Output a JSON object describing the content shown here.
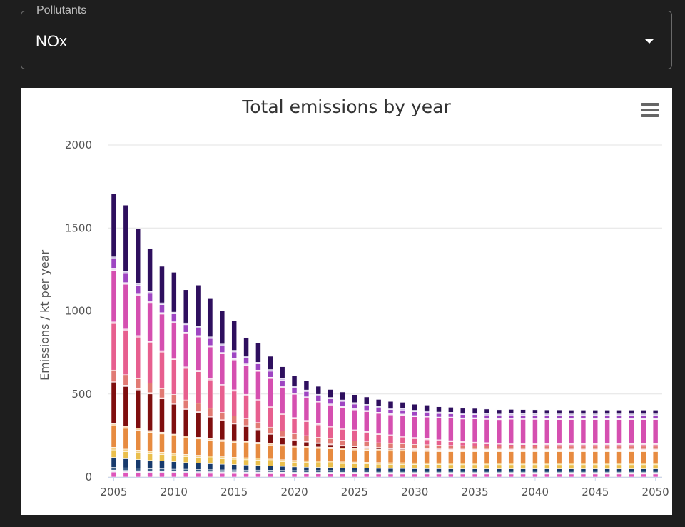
{
  "selector": {
    "label": "Pollutants",
    "value": "NOx"
  },
  "chart_data": {
    "type": "bar",
    "stacked": true,
    "title": "Total emissions by year",
    "xlabel": "",
    "ylabel": "Emissions / kt per year",
    "ylim": [
      0,
      2000
    ],
    "yticks": [
      0,
      500,
      1000,
      1500,
      2000
    ],
    "xticks": [
      2005,
      2010,
      2015,
      2020,
      2025,
      2030,
      2035,
      2040,
      2045,
      2050
    ],
    "grid": true,
    "legend": "none",
    "categories": [
      2005,
      2006,
      2007,
      2008,
      2009,
      2010,
      2011,
      2012,
      2013,
      2014,
      2015,
      2016,
      2017,
      2018,
      2019,
      2020,
      2021,
      2022,
      2023,
      2024,
      2025,
      2026,
      2027,
      2028,
      2029,
      2030,
      2031,
      2032,
      2033,
      2034,
      2035,
      2036,
      2037,
      2038,
      2039,
      2040,
      2041,
      2042,
      2043,
      2044,
      2045,
      2046,
      2047,
      2048,
      2049,
      2050
    ],
    "series": [
      {
        "color": "#dd55bb",
        "values": [
          30,
          28,
          26,
          25,
          24,
          23,
          23,
          22,
          22,
          21,
          21,
          20,
          20,
          20,
          20,
          19,
          19,
          19,
          19,
          19,
          19,
          19,
          18,
          18,
          18,
          18,
          18,
          18,
          18,
          18,
          18,
          18,
          18,
          18,
          18,
          18,
          18,
          18,
          18,
          18,
          18,
          18,
          18,
          18,
          18,
          18
        ]
      },
      {
        "color": "#e9e4f2",
        "values": [
          12,
          12,
          12,
          11,
          11,
          11,
          11,
          10,
          10,
          10,
          10,
          10,
          10,
          10,
          9,
          9,
          9,
          9,
          9,
          9,
          9,
          9,
          9,
          9,
          9,
          9,
          9,
          9,
          9,
          9,
          9,
          9,
          9,
          9,
          9,
          9,
          9,
          9,
          9,
          9,
          9,
          9,
          9,
          9,
          9,
          9
        ]
      },
      {
        "color": "#3d6088",
        "values": [
          16,
          15,
          15,
          14,
          14,
          13,
          13,
          13,
          12,
          12,
          12,
          12,
          12,
          11,
          11,
          11,
          11,
          11,
          11,
          10,
          10,
          10,
          10,
          10,
          10,
          10,
          10,
          10,
          10,
          10,
          10,
          10,
          10,
          10,
          10,
          10,
          10,
          10,
          10,
          10,
          10,
          10,
          10,
          10,
          10,
          10
        ]
      },
      {
        "color": "#173a6c",
        "values": [
          60,
          55,
          52,
          50,
          48,
          45,
          40,
          38,
          36,
          34,
          32,
          30,
          28,
          26,
          24,
          22,
          20,
          19,
          18,
          17,
          16,
          15,
          15,
          14,
          14,
          13,
          13,
          13,
          12,
          12,
          12,
          12,
          12,
          12,
          12,
          12,
          12,
          12,
          12,
          12,
          12,
          12,
          12,
          12,
          12,
          12
        ]
      },
      {
        "color": "#eabf4c",
        "values": [
          45,
          43,
          42,
          40,
          38,
          37,
          36,
          35,
          34,
          33,
          32,
          32,
          31,
          30,
          29,
          28,
          28,
          27,
          27,
          26,
          26,
          26,
          25,
          25,
          25,
          25,
          25,
          25,
          25,
          25,
          25,
          25,
          25,
          25,
          25,
          25,
          25,
          25,
          25,
          25,
          25,
          25,
          25,
          25,
          25,
          25
        ]
      },
      {
        "color": "#f4cf85",
        "values": [
          16,
          15,
          15,
          14,
          14,
          13,
          13,
          13,
          12,
          12,
          12,
          12,
          12,
          11,
          11,
          11,
          11,
          11,
          11,
          10,
          10,
          10,
          10,
          10,
          10,
          10,
          10,
          10,
          10,
          10,
          10,
          10,
          10,
          10,
          10,
          10,
          10,
          10,
          10,
          10,
          10,
          10,
          10,
          10,
          10,
          10
        ]
      },
      {
        "color": "#e78b40",
        "values": [
          130,
          125,
          120,
          115,
          110,
          105,
          100,
          98,
          95,
          92,
          90,
          88,
          86,
          84,
          82,
          80,
          78,
          76,
          75,
          74,
          73,
          72,
          71,
          70,
          70,
          69,
          69,
          68,
          68,
          68,
          68,
          68,
          68,
          68,
          68,
          68,
          68,
          68,
          68,
          68,
          68,
          68,
          68,
          68,
          68,
          68
        ]
      },
      {
        "color": "#fad4a8",
        "values": [
          12,
          12,
          12,
          11,
          11,
          11,
          11,
          10,
          10,
          10,
          10,
          10,
          10,
          10,
          9,
          9,
          9,
          9,
          9,
          9,
          9,
          9,
          9,
          9,
          9,
          9,
          9,
          9,
          9,
          9,
          9,
          9,
          9,
          9,
          9,
          9,
          9,
          9,
          9,
          9,
          9,
          9,
          9,
          9,
          9,
          9
        ]
      },
      {
        "color": "#7f0e0e",
        "values": [
          250,
          240,
          230,
          220,
          200,
          180,
          160,
          150,
          130,
          115,
          100,
          90,
          75,
          55,
          40,
          30,
          25,
          20,
          15,
          12,
          10,
          8,
          6,
          5,
          4,
          3,
          2,
          2,
          2,
          2,
          2,
          2,
          2,
          2,
          2,
          2,
          2,
          2,
          2,
          2,
          2,
          2,
          2,
          2,
          2,
          2
        ]
      },
      {
        "color": "#f7bebe",
        "values": [
          8,
          8,
          8,
          8,
          7,
          7,
          7,
          7,
          7,
          6,
          6,
          6,
          6,
          6,
          6,
          6,
          5,
          5,
          5,
          5,
          5,
          5,
          5,
          5,
          5,
          5,
          5,
          5,
          5,
          5,
          5,
          5,
          5,
          5,
          5,
          5,
          5,
          5,
          5,
          5,
          5,
          5,
          5,
          5,
          5,
          5
        ]
      },
      {
        "color": "#e17a73",
        "values": [
          65,
          63,
          60,
          58,
          55,
          52,
          50,
          48,
          46,
          44,
          42,
          40,
          38,
          37,
          36,
          35,
          34,
          33,
          32,
          31,
          30,
          29,
          28,
          27,
          26,
          25,
          24,
          23,
          22,
          21,
          20,
          20,
          20,
          19,
          19,
          19,
          18,
          18,
          18,
          18,
          18,
          18,
          18,
          18,
          18,
          18
        ]
      },
      {
        "color": "#e75f8f",
        "values": [
          280,
          265,
          250,
          240,
          220,
          210,
          190,
          190,
          170,
          160,
          150,
          140,
          130,
          120,
          100,
          90,
          85,
          75,
          70,
          65,
          60,
          55,
          50,
          45,
          40,
          35,
          30,
          25,
          22,
          18,
          15,
          12,
          10,
          9,
          8,
          8,
          8,
          8,
          8,
          8,
          8,
          8,
          8,
          8,
          8,
          8
        ]
      },
      {
        "color": "#f4c1dc",
        "values": [
          10,
          10,
          10,
          10,
          9,
          9,
          9,
          9,
          9,
          8,
          8,
          8,
          8,
          8,
          8,
          8,
          7,
          7,
          7,
          7,
          7,
          7,
          7,
          7,
          7,
          7,
          7,
          7,
          7,
          7,
          7,
          7,
          7,
          7,
          7,
          7,
          7,
          7,
          7,
          7,
          7,
          7,
          7,
          7,
          7,
          7
        ]
      },
      {
        "color": "#d54fb0",
        "values": [
          310,
          270,
          240,
          230,
          220,
          210,
          200,
          200,
          190,
          185,
          180,
          175,
          170,
          165,
          155,
          140,
          135,
          130,
          125,
          125,
          120,
          120,
          120,
          120,
          125,
          125,
          130,
          130,
          135,
          135,
          140,
          140,
          140,
          145,
          145,
          145,
          145,
          145,
          145,
          145,
          145,
          145,
          145,
          145,
          145,
          145
        ]
      },
      {
        "color": "#f0dcf0",
        "values": [
          10,
          10,
          10,
          10,
          9,
          9,
          9,
          9,
          9,
          8,
          8,
          8,
          8,
          8,
          8,
          7,
          7,
          7,
          7,
          7,
          7,
          7,
          7,
          7,
          7,
          7,
          7,
          7,
          7,
          7,
          7,
          7,
          7,
          7,
          7,
          7,
          7,
          7,
          7,
          7,
          7,
          7,
          7,
          7,
          7,
          7
        ]
      },
      {
        "color": "#9e45c2",
        "values": [
          60,
          55,
          52,
          50,
          48,
          47,
          45,
          44,
          42,
          41,
          40,
          38,
          37,
          36,
          35,
          33,
          32,
          31,
          30,
          29,
          28,
          27,
          26,
          25,
          24,
          23,
          22,
          21,
          20,
          20,
          19,
          19,
          18,
          18,
          18,
          18,
          18,
          18,
          18,
          18,
          18,
          18,
          18,
          18,
          18,
          18
        ]
      },
      {
        "color": "#cfc1e6",
        "values": [
          12,
          12,
          12,
          11,
          11,
          11,
          11,
          10,
          10,
          10,
          10,
          10,
          10,
          10,
          9,
          9,
          9,
          9,
          9,
          9,
          9,
          9,
          9,
          9,
          9,
          9,
          9,
          9,
          9,
          9,
          9,
          9,
          9,
          9,
          9,
          9,
          9,
          9,
          9,
          9,
          9,
          9,
          9,
          9,
          9,
          9
        ]
      },
      {
        "color": "#2e0f5e",
        "values": [
          380,
          400,
          330,
          260,
          220,
          240,
          200,
          250,
          230,
          200,
          180,
          110,
          115,
          80,
          72,
          62,
          55,
          48,
          48,
          48,
          48,
          45,
          42,
          40,
          38,
          36,
          34,
          32,
          30,
          29,
          28,
          27,
          26,
          25,
          25,
          24,
          24,
          24,
          23,
          23,
          23,
          23,
          23,
          23,
          23,
          23
        ]
      }
    ]
  }
}
